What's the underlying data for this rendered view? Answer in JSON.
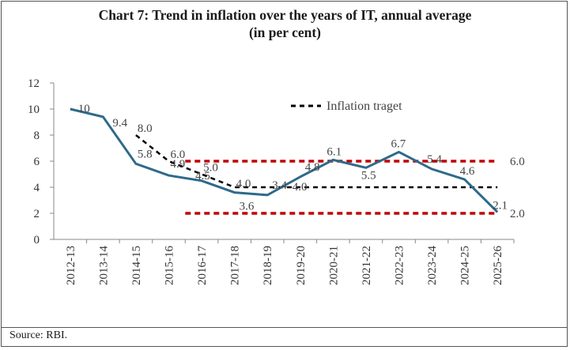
{
  "title_line1": "Chart 7: Trend in inflation over the years of IT, annual average",
  "title_line2": "(in per cent)",
  "source": "Source: RBI.",
  "colors": {
    "inflation": "#2e6a8a",
    "target": "#000000",
    "band": "#c00000"
  },
  "chart_data": {
    "type": "line",
    "title": "Chart 7: Trend in inflation over the years of IT, annual average (in per cent)",
    "xlabel": "",
    "ylabel": "",
    "ylim": [
      0,
      12
    ],
    "yticks": [
      0,
      2,
      4,
      6,
      8,
      10,
      12
    ],
    "grid": false,
    "legend_position": "top-right",
    "categories": [
      "2012-13",
      "2013-14",
      "2014-15",
      "2015-16",
      "2016-17",
      "2017-18",
      "2018-19",
      "2019-20",
      "2020-21",
      "2021-22",
      "2022-23",
      "2023-24",
      "2024-25",
      "2025-26"
    ],
    "series": [
      {
        "values": [
          10,
          9.4,
          5.8,
          4.9,
          4.5,
          3.6,
          3.4,
          4.8,
          6.1,
          5.5,
          6.7,
          5.4,
          4.6,
          2.1
        ],
        "labels": [
          "10",
          "9.4",
          "5.8",
          "4.9",
          "4.5",
          "3.6",
          "3.4",
          "4.8",
          "6.1",
          "5.5",
          "6.7",
          "5.4",
          "4.6",
          "2.1"
        ]
      },
      {
        "name": "Inflation traget",
        "values": [
          null,
          null,
          8.0,
          6.0,
          5.0,
          4.0,
          4.0,
          4.0,
          4.0,
          4.0,
          4.0,
          4.0,
          4.0,
          4.0
        ],
        "labels": [
          "8.0",
          "6.0",
          "5.0",
          "4.0",
          "4.0"
        ]
      },
      {
        "values": [
          null,
          null,
          null,
          null,
          6.0,
          6.0,
          6.0,
          6.0,
          6.0,
          6.0,
          6.0,
          6.0,
          6.0,
          6.0
        ],
        "labels": [
          "6.0"
        ]
      },
      {
        "values": [
          null,
          null,
          null,
          null,
          2.0,
          2.0,
          2.0,
          2.0,
          2.0,
          2.0,
          2.0,
          2.0,
          2.0,
          2.0
        ],
        "labels": [
          "2.0"
        ]
      }
    ]
  }
}
